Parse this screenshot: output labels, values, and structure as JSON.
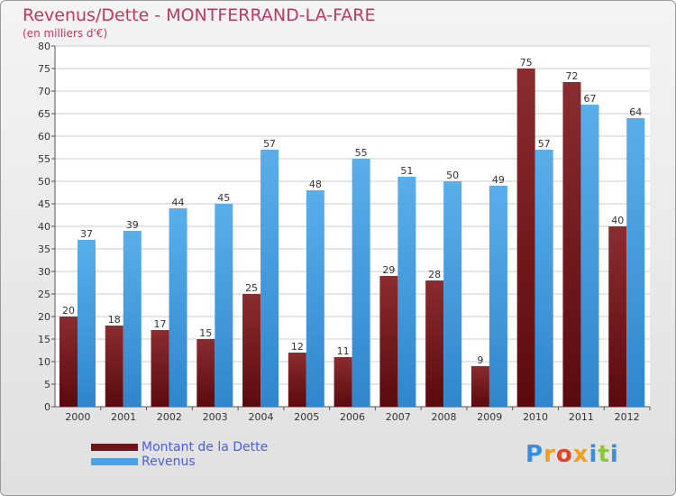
{
  "chart_data": {
    "type": "bar",
    "title": "Revenus/Dette - MONTFERRAND-LA-FARE",
    "subtitle": "(en milliers d'€)",
    "categories": [
      "2000",
      "2001",
      "2002",
      "2003",
      "2004",
      "2005",
      "2006",
      "2007",
      "2008",
      "2009",
      "2010",
      "2011",
      "2012"
    ],
    "series": [
      {
        "name": "Montant de la Dette",
        "color": "#6e1419",
        "values": [
          20,
          18,
          17,
          15,
          25,
          12,
          11,
          29,
          28,
          9,
          75,
          72,
          40
        ]
      },
      {
        "name": "Revenus",
        "color": "#4aa3e6",
        "values": [
          37,
          39,
          44,
          45,
          57,
          48,
          55,
          51,
          50,
          49,
          57,
          67,
          64
        ]
      }
    ],
    "ylim": [
      0,
      80
    ],
    "yticks": [
      0,
      5,
      10,
      15,
      20,
      25,
      30,
      35,
      40,
      45,
      50,
      55,
      60,
      65,
      70,
      75,
      80
    ],
    "grid": true,
    "legend_position": "bottom-left"
  },
  "logo": {
    "text": "Proxiti",
    "letter_colors": [
      "#3a8ee0",
      "#f0a020",
      "#e0452a",
      "#f0a020",
      "#3a8ee0",
      "#8cc63f",
      "#3a8ee0"
    ]
  }
}
